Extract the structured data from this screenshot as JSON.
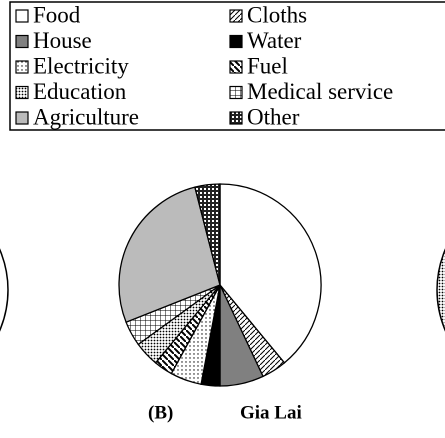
{
  "chart_data": {
    "type": "pie",
    "title": "Gia Lai",
    "panel": "(B)",
    "categories": [
      "Food",
      "Cloths",
      "House",
      "Water",
      "Electricity",
      "Fuel",
      "Education",
      "Medical service",
      "Agriculture",
      "Other"
    ],
    "values": [
      39,
      4,
      7,
      3,
      5,
      3,
      4,
      4,
      27,
      4
    ]
  }
}
